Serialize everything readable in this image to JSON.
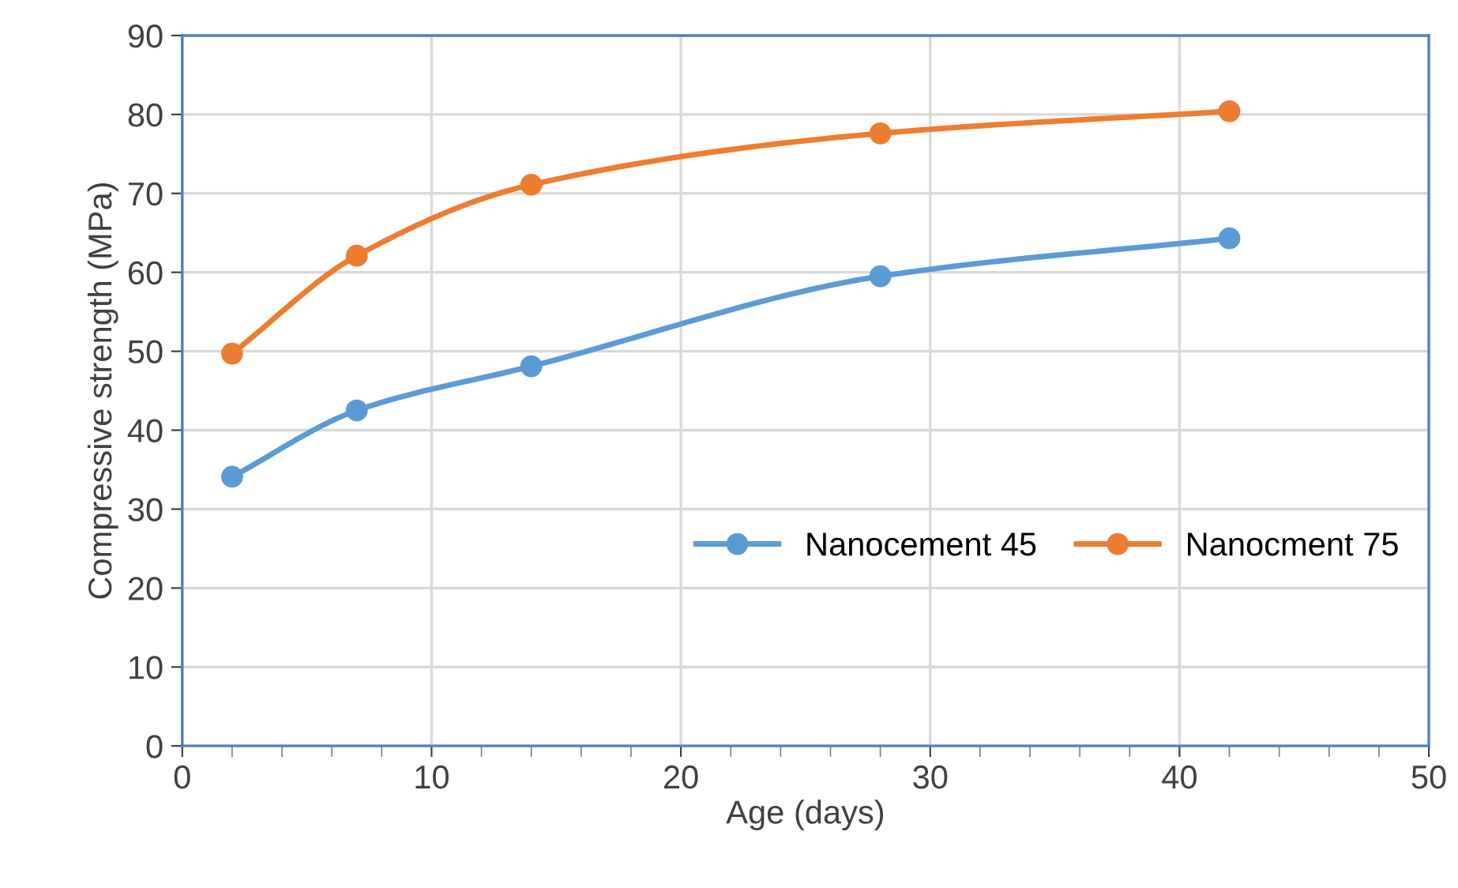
{
  "chart_data": {
    "type": "line",
    "xlabel": "Age (days)",
    "ylabel": "Compressive strength (MPa)",
    "x": [
      2,
      7,
      14,
      28,
      42
    ],
    "series": [
      {
        "name": "Nanocement 45",
        "color": "#5b9bd5",
        "values": [
          34.1,
          42.5,
          48.1,
          59.5,
          64.3
        ]
      },
      {
        "name": "Nanocment 75",
        "color": "#ed7d31",
        "values": [
          49.7,
          62.1,
          71.1,
          77.6,
          80.4
        ]
      }
    ],
    "xlim": [
      0,
      50
    ],
    "xticks": [
      0,
      10,
      20,
      30,
      40,
      50
    ],
    "ylim": [
      0,
      90
    ],
    "yticks": [
      0,
      10,
      20,
      30,
      40,
      50,
      60,
      70,
      80,
      90
    ],
    "grid": true,
    "legend": "center right",
    "marker": "circle",
    "line_style": "solid"
  }
}
